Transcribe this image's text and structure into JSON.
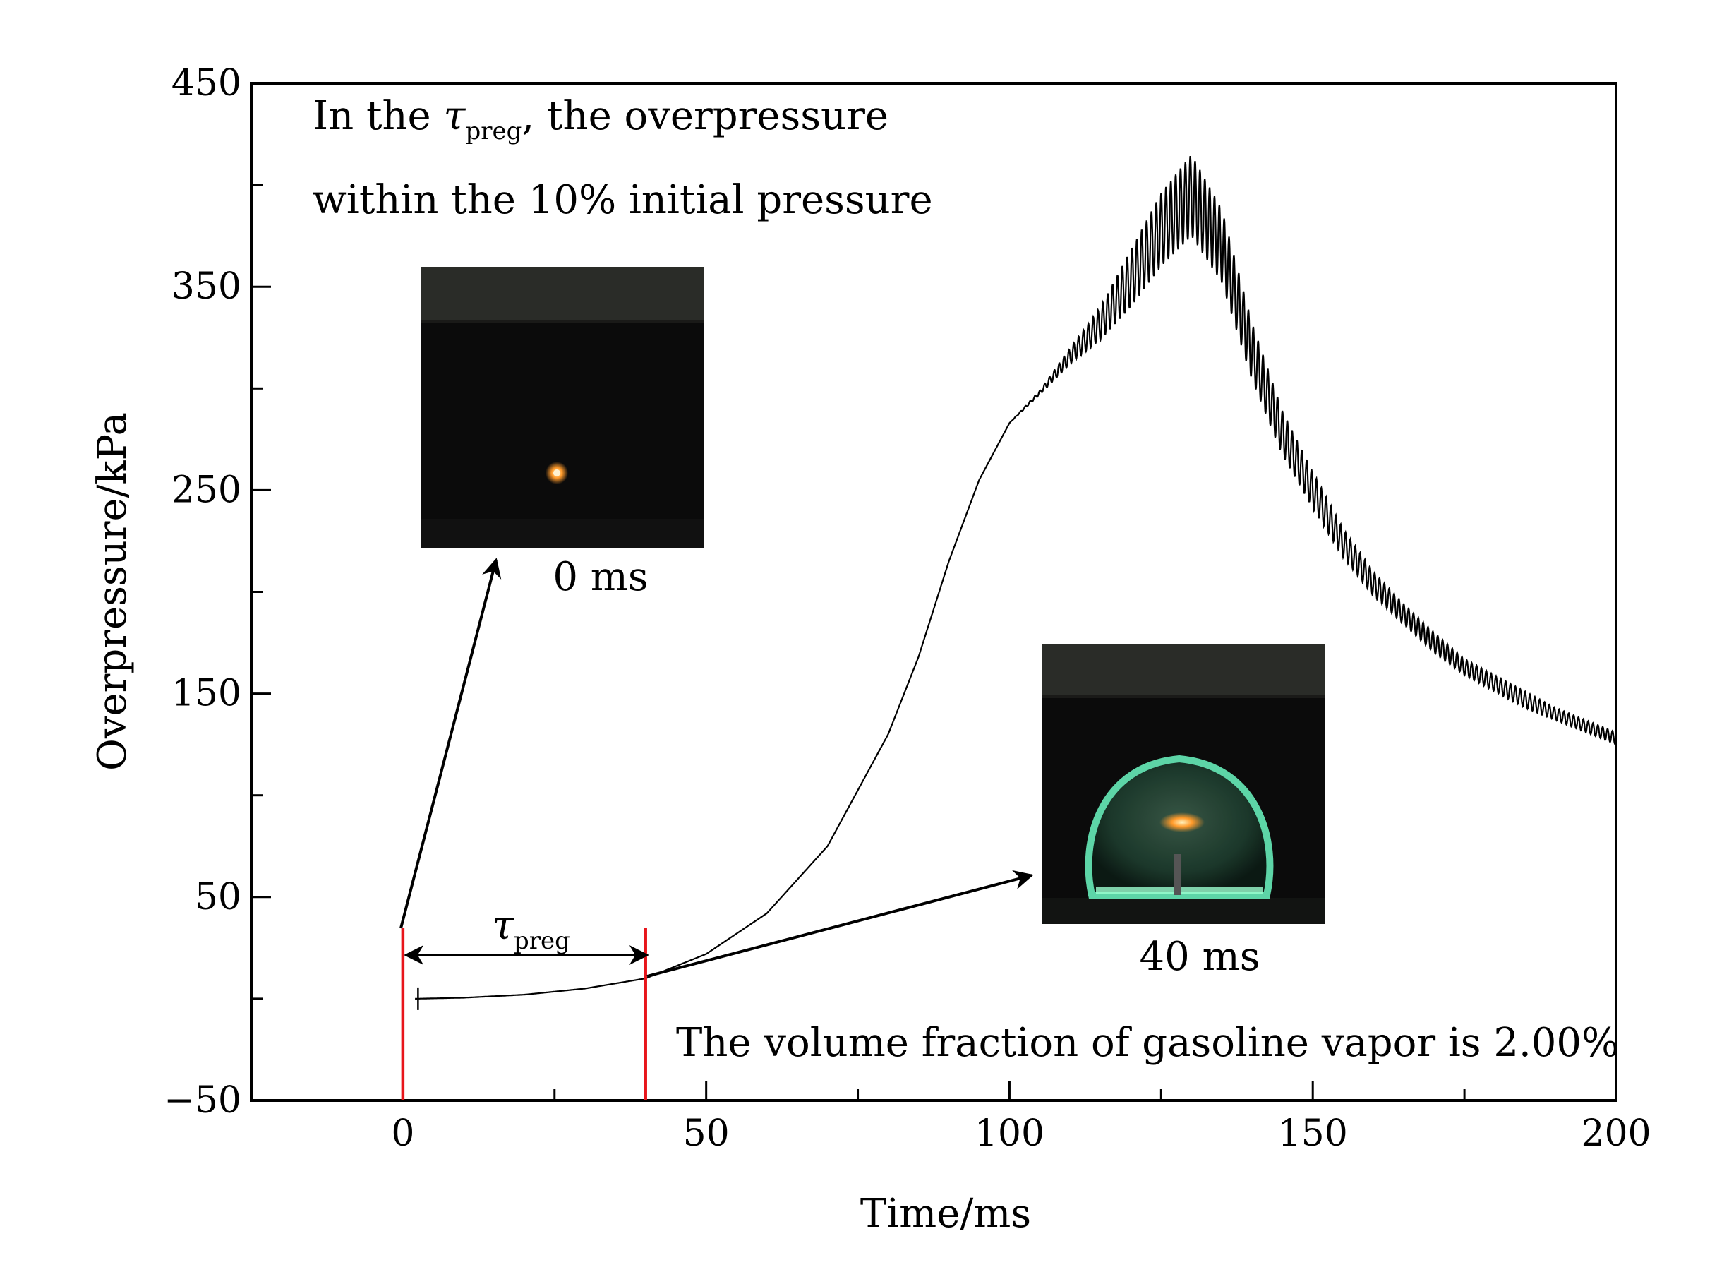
{
  "chart_data": {
    "type": "line",
    "xlabel": "Time/ms",
    "ylabel": "Overpressure/kPa",
    "xlim": [
      -25,
      200
    ],
    "ylim": [
      -50,
      450
    ],
    "x_ticks": [
      0,
      50,
      100,
      150,
      200
    ],
    "x_tick_labels": [
      "0",
      "50",
      "100",
      "150",
      "200"
    ],
    "y_ticks": [
      -50,
      50,
      150,
      250,
      350,
      450
    ],
    "y_tick_labels": [
      "−50",
      "50",
      "150",
      "250",
      "350",
      "450"
    ],
    "grid": false,
    "series": [
      {
        "color": "#000000",
        "x": [
          2,
          10,
          20,
          30,
          40,
          50,
          60,
          70,
          80,
          85,
          90,
          95,
          100,
          105,
          110,
          115,
          120,
          125,
          130,
          135,
          140,
          145,
          150,
          155,
          160,
          165,
          170,
          175,
          180,
          185,
          190,
          195,
          200
        ],
        "y": [
          0,
          0.5,
          2,
          5,
          10,
          22,
          42,
          75,
          130,
          168,
          215,
          255,
          283,
          298,
          316,
          332,
          354,
          378,
          395,
          370,
          318,
          278,
          250,
          224,
          204,
          189,
          175,
          163,
          155,
          147,
          140,
          134,
          128
        ],
        "oscillation_amplitude": [
          0,
          0,
          0,
          0,
          0,
          0,
          0,
          0,
          0,
          0,
          0,
          0,
          0,
          1,
          4,
          8,
          14,
          18,
          20,
          18,
          14,
          11,
          9,
          7,
          6,
          5,
          5,
          4,
          4,
          4,
          3,
          3,
          3
        ]
      }
    ],
    "markers": [
      {
        "x": 0,
        "color": "#e8151b"
      },
      {
        "x": 40,
        "color": "#e8151b"
      }
    ],
    "annotations": {
      "top_line1_pre": "In the ",
      "tau": "τ",
      "preg": "preg",
      "top_line1_post": ", the overpressure",
      "top_line2": "within the 10% initial pressure",
      "bottom": "The volume fraction of gasoline vapor is 2.00%",
      "span_tau": "τ",
      "span_preg": "preg",
      "inset1_caption": "0 ms",
      "inset2_caption": "40 ms"
    }
  }
}
